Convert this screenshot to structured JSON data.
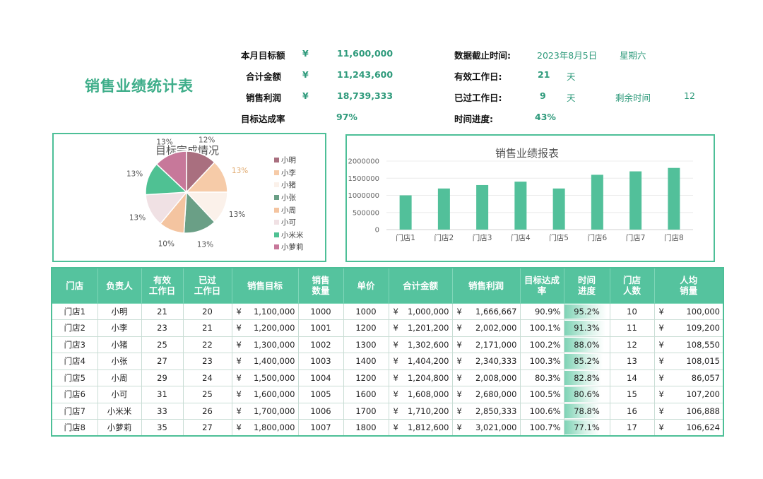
{
  "title": "销售业绩统计表",
  "summary": {
    "target_label": "本月目标额",
    "target_currency": "¥",
    "target_value": "11,600,000",
    "total_label": "合计金额",
    "total_currency": "¥",
    "total_value": "11,243,600",
    "profit_label": "销售利润",
    "profit_currency": "¥",
    "profit_value": "18,739,333",
    "rate_label": "目标达成率",
    "rate_value": "97%",
    "deadline_label": "数据截止时间:",
    "deadline_date": "2023年8月5日",
    "deadline_weekday": "星期六",
    "workdays_label": "有效工作日:",
    "workdays_value": "21",
    "workdays_unit": "天",
    "passed_label": "已过工作日:",
    "passed_value": "9",
    "passed_unit": "天",
    "remaining_label": "剩余时间",
    "remaining_value": "12",
    "progress_label": "时间进度:",
    "progress_value": "43%"
  },
  "colors": {
    "accent": "#55c39e",
    "accent_dark": "#2e9a7b",
    "border": "#4dbf97",
    "bar": "#52c09a"
  },
  "chart_data": [
    {
      "type": "pie",
      "title": "目标完成情况",
      "categories": [
        "小明",
        "小李",
        "小猪",
        "小张",
        "小周",
        "小可",
        "小米米",
        "小萝莉"
      ],
      "values": [
        12,
        13,
        13,
        13,
        10,
        13,
        13,
        13
      ],
      "labels": [
        "12%",
        "13%",
        "13%",
        "13%",
        "10%",
        "13%",
        "13%",
        "13%"
      ],
      "colors": [
        "#a96f7f",
        "#f6cba8",
        "#fbf1ea",
        "#6a9f86",
        "#f4c4a0",
        "#f0e1e4",
        "#4fc193",
        "#c7789a"
      ],
      "legend_position": "right"
    },
    {
      "type": "bar",
      "title": "销售业绩报表",
      "categories": [
        "门店1",
        "门店2",
        "门店3",
        "门店4",
        "门店5",
        "门店6",
        "门店7",
        "门店8"
      ],
      "values": [
        1000000,
        1200000,
        1300000,
        1400000,
        1200000,
        1600000,
        1700000,
        1800000
      ],
      "yticks": [
        "2000000",
        "1500000",
        "1000000",
        "500000",
        "0"
      ],
      "ylim": [
        0,
        2000000
      ],
      "grid": true
    }
  ],
  "table": {
    "headers": [
      "门店",
      "负责人",
      "有效\n工作日",
      "已过\n工作日",
      "销售目标",
      "销售\n数量",
      "单价",
      "合计金额",
      "销售利润",
      "目标达成\n率",
      "时间\n进度",
      "门店\n人数",
      "人均\n销量"
    ],
    "rows": [
      {
        "store": "门店1",
        "owner": "小明",
        "workdays": "21",
        "passed": "20",
        "target": "1,100,000",
        "qty": "1000",
        "price": "1000",
        "total": "1,000,000",
        "profit": "1,666,667",
        "rate": "90.9%",
        "progress": "95.2%",
        "progress_value": 0.952,
        "staff": "10",
        "per": "100,000"
      },
      {
        "store": "门店2",
        "owner": "小李",
        "workdays": "23",
        "passed": "21",
        "target": "1,200,000",
        "qty": "1001",
        "price": "1200",
        "total": "1,201,200",
        "profit": "2,002,000",
        "rate": "100.1%",
        "progress": "91.3%",
        "progress_value": 0.913,
        "staff": "11",
        "per": "109,200"
      },
      {
        "store": "门店3",
        "owner": "小猪",
        "workdays": "25",
        "passed": "22",
        "target": "1,300,000",
        "qty": "1002",
        "price": "1300",
        "total": "1,302,600",
        "profit": "2,171,000",
        "rate": "100.2%",
        "progress": "88.0%",
        "progress_value": 0.88,
        "staff": "12",
        "per": "108,550"
      },
      {
        "store": "门店4",
        "owner": "小张",
        "workdays": "27",
        "passed": "23",
        "target": "1,400,000",
        "qty": "1003",
        "price": "1400",
        "total": "1,404,200",
        "profit": "2,340,333",
        "rate": "100.3%",
        "progress": "85.2%",
        "progress_value": 0.852,
        "staff": "13",
        "per": "108,015"
      },
      {
        "store": "门店5",
        "owner": "小周",
        "workdays": "29",
        "passed": "24",
        "target": "1,500,000",
        "qty": "1004",
        "price": "1200",
        "total": "1,204,800",
        "profit": "2,008,000",
        "rate": "80.3%",
        "progress": "82.8%",
        "progress_value": 0.828,
        "staff": "14",
        "per": "86,057"
      },
      {
        "store": "门店6",
        "owner": "小可",
        "workdays": "31",
        "passed": "25",
        "target": "1,600,000",
        "qty": "1005",
        "price": "1600",
        "total": "1,608,000",
        "profit": "2,680,000",
        "rate": "100.5%",
        "progress": "80.6%",
        "progress_value": 0.806,
        "staff": "15",
        "per": "107,200"
      },
      {
        "store": "门店7",
        "owner": "小米米",
        "workdays": "33",
        "passed": "26",
        "target": "1,700,000",
        "qty": "1006",
        "price": "1700",
        "total": "1,710,200",
        "profit": "2,850,333",
        "rate": "100.6%",
        "progress": "78.8%",
        "progress_value": 0.788,
        "staff": "16",
        "per": "106,888"
      },
      {
        "store": "门店8",
        "owner": "小萝莉",
        "workdays": "35",
        "passed": "27",
        "target": "1,800,000",
        "qty": "1007",
        "price": "1800",
        "total": "1,812,600",
        "profit": "3,021,000",
        "rate": "100.7%",
        "progress": "77.1%",
        "progress_value": 0.771,
        "staff": "17",
        "per": "106,624"
      }
    ]
  }
}
